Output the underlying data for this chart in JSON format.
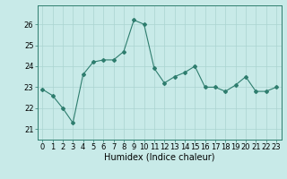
{
  "x": [
    0,
    1,
    2,
    3,
    4,
    5,
    6,
    7,
    8,
    9,
    10,
    11,
    12,
    13,
    14,
    15,
    16,
    17,
    18,
    19,
    20,
    21,
    22,
    23
  ],
  "y": [
    22.9,
    22.6,
    22.0,
    21.3,
    23.6,
    24.2,
    24.3,
    24.3,
    24.7,
    26.2,
    26.0,
    23.9,
    23.2,
    23.5,
    23.7,
    24.0,
    23.0,
    23.0,
    22.8,
    23.1,
    23.5,
    22.8,
    22.8,
    23.0
  ],
  "line_color": "#2e7d6e",
  "marker": "D",
  "markersize": 2.0,
  "linewidth": 0.8,
  "xlabel": "Humidex (Indice chaleur)",
  "xlabel_fontsize": 7,
  "ylabel_ticks": [
    21,
    22,
    23,
    24,
    25,
    26
  ],
  "xlim": [
    -0.5,
    23.5
  ],
  "ylim": [
    20.5,
    26.9
  ],
  "bg_color": "#c8eae8",
  "grid_color": "#aad4d0",
  "tick_fontsize": 6
}
